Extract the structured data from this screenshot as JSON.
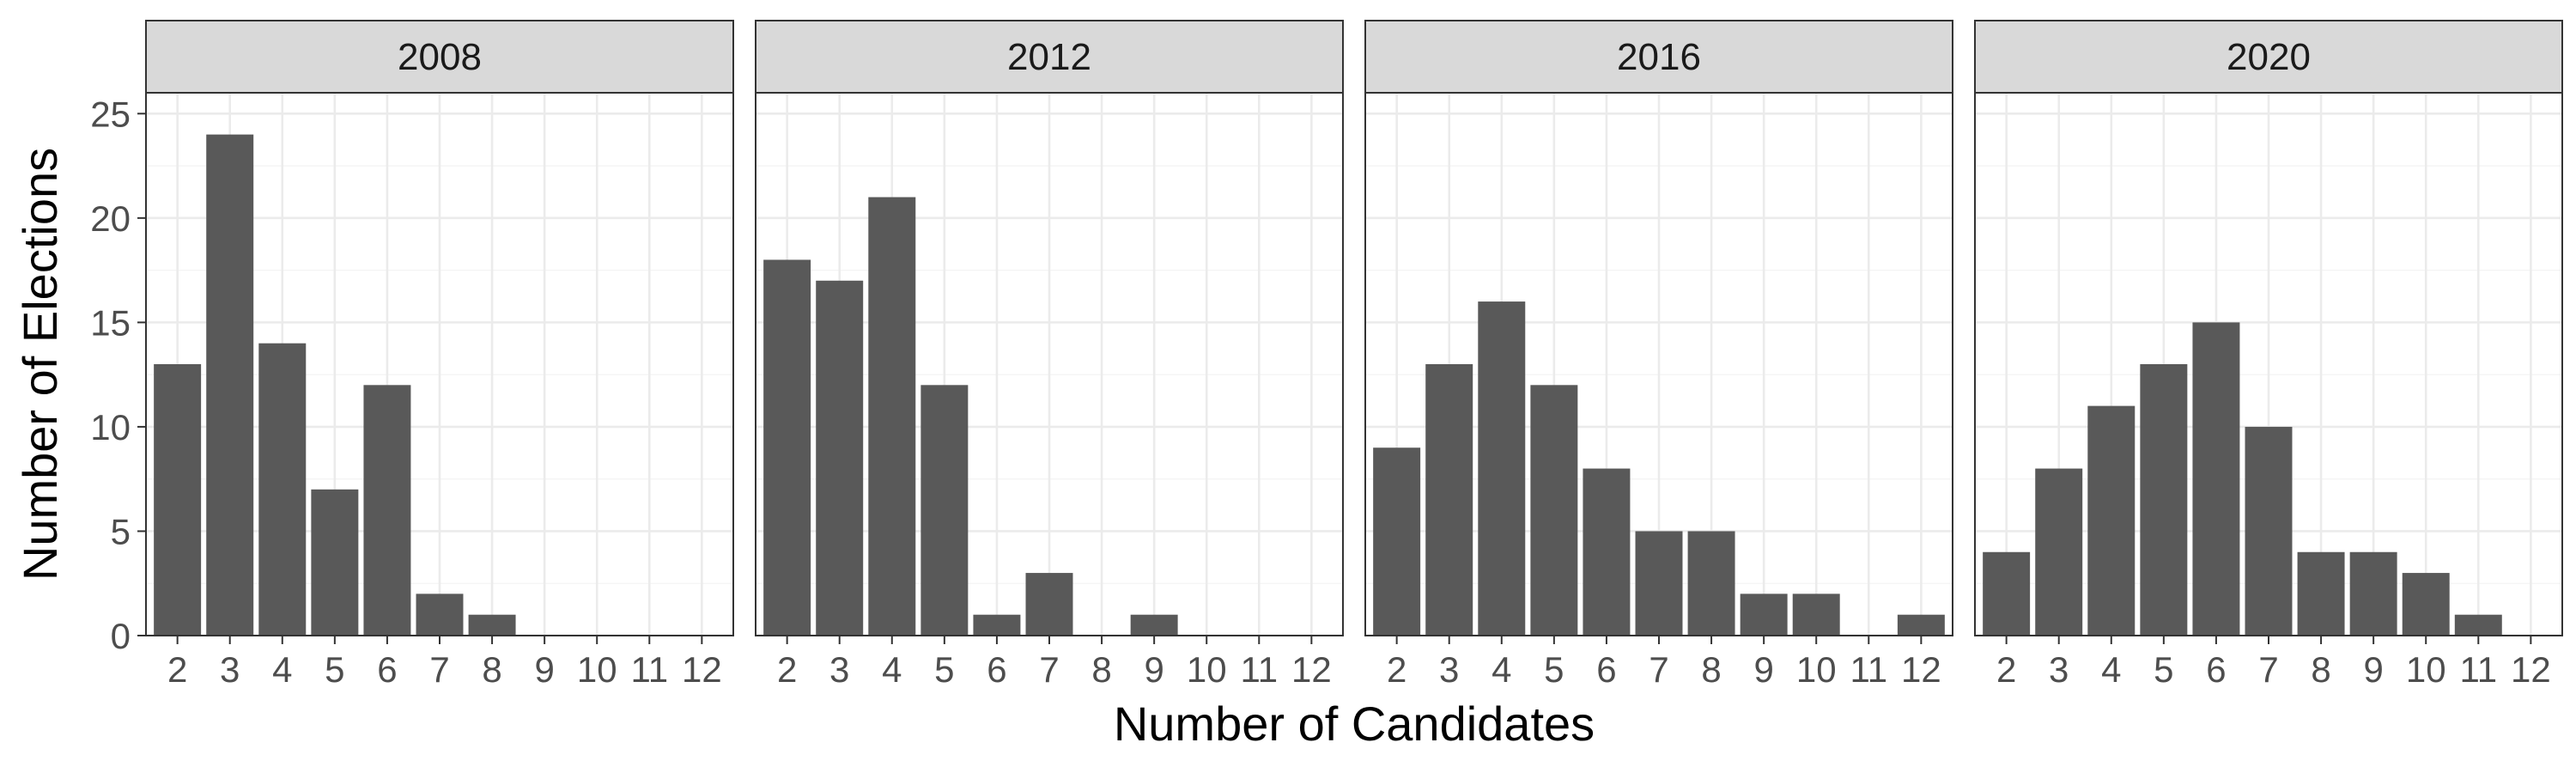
{
  "chart_data": {
    "type": "bar",
    "xlabel": "Number of Candidates",
    "ylabel": "Number of Elections",
    "categories": [
      "2",
      "3",
      "4",
      "5",
      "6",
      "7",
      "8",
      "9",
      "10",
      "11",
      "12"
    ],
    "yticks": [
      "0",
      "5",
      "10",
      "15",
      "20",
      "25"
    ],
    "ylim": [
      0,
      26
    ],
    "grid": true,
    "facets": [
      {
        "label": "2008",
        "values": [
          13,
          24,
          14,
          7,
          12,
          2,
          1,
          0,
          0,
          0,
          0
        ]
      },
      {
        "label": "2012",
        "values": [
          18,
          17,
          21,
          12,
          1,
          3,
          0,
          1,
          0,
          0,
          0
        ]
      },
      {
        "label": "2016",
        "values": [
          9,
          13,
          16,
          12,
          8,
          5,
          5,
          2,
          2,
          0,
          1
        ]
      },
      {
        "label": "2020",
        "values": [
          4,
          8,
          11,
          13,
          15,
          10,
          4,
          4,
          3,
          1,
          0
        ]
      }
    ],
    "bar_color": "#595959",
    "strip_color": "#d9d9d9"
  }
}
